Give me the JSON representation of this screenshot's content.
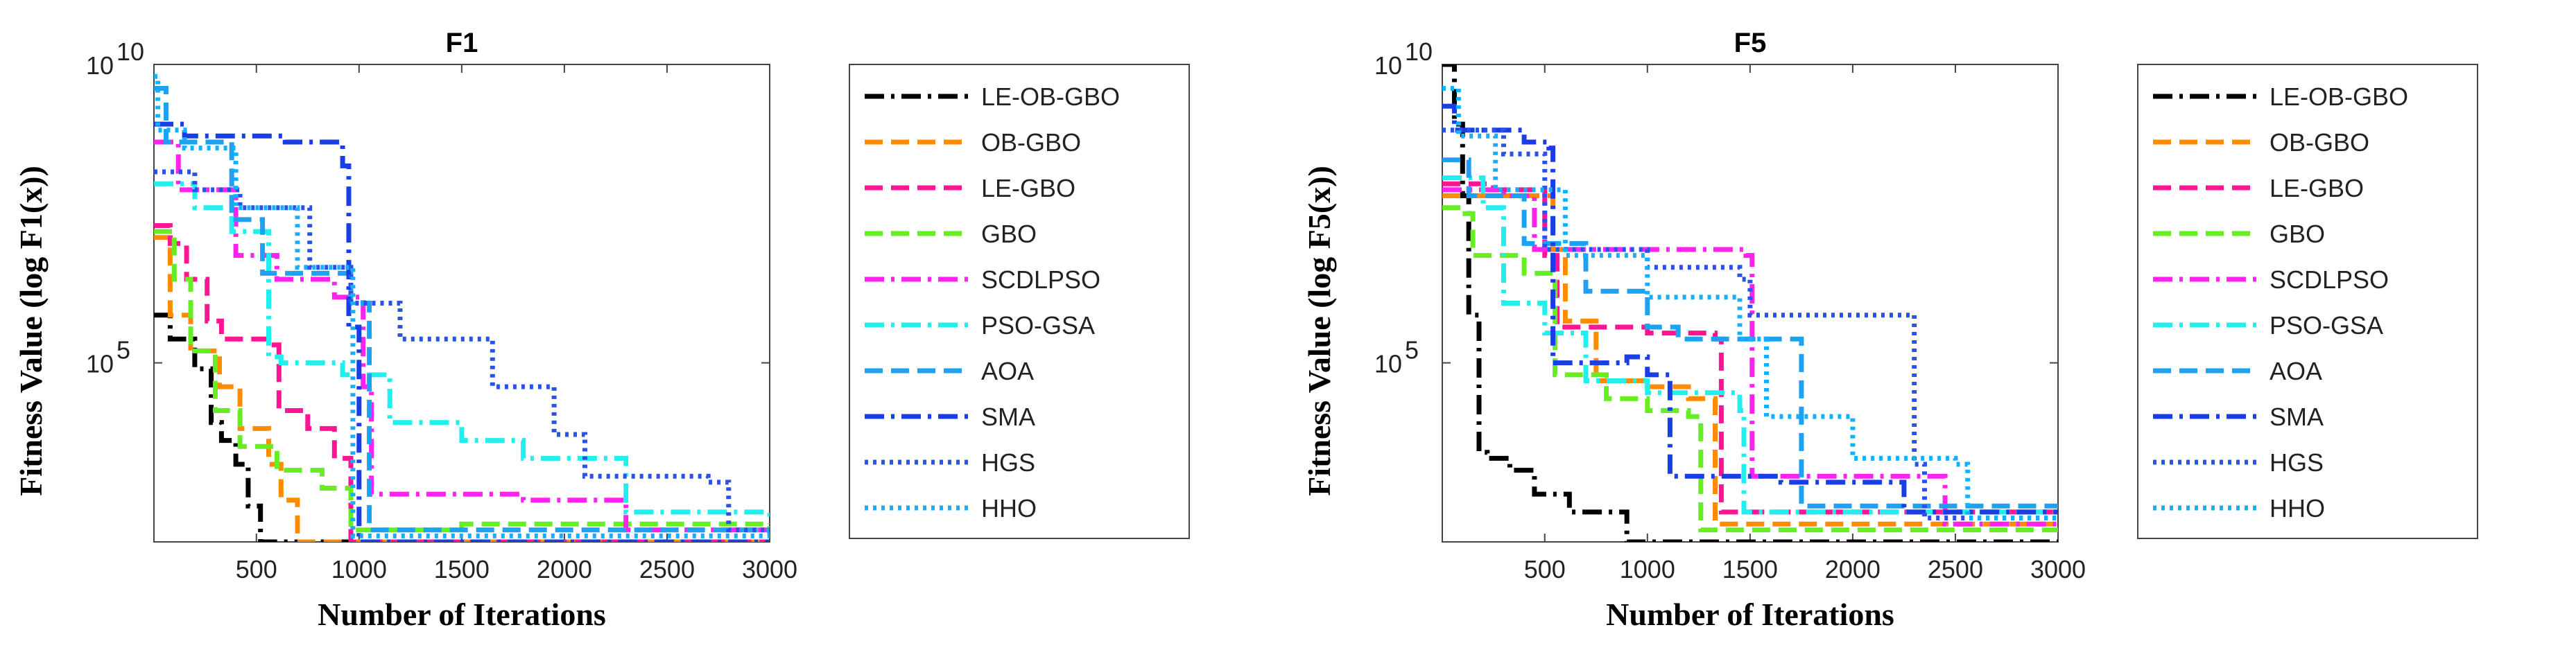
{
  "chart_data": [
    {
      "type": "line",
      "title": "F1",
      "xlabel": "Number of Iterations",
      "ylabel": "Fitness Value (log F1(x))",
      "xlim": [
        1,
        3000
      ],
      "ylim_log10": [
        2,
        10
      ],
      "y_scale": "log",
      "xticks": [
        "500",
        "1000",
        "1500",
        "2000",
        "2500",
        "3000"
      ],
      "yticks": [
        {
          "base": "10",
          "exp": "10",
          "value": 10
        },
        {
          "base": "10",
          "exp": "5",
          "value": 5
        }
      ],
      "grid": false,
      "legend": "outside-right",
      "series": [
        {
          "name": "LE-OB-GBO",
          "color": "#000000",
          "dash": "dashdot",
          "points": [
            [
              1,
              5.8
            ],
            [
              80,
              5.4
            ],
            [
              200,
              4.9
            ],
            [
              280,
              4.0
            ],
            [
              330,
              3.7
            ],
            [
              400,
              3.3
            ],
            [
              460,
              2.6
            ],
            [
              520,
              2.0
            ],
            [
              3000,
              2.0
            ]
          ]
        },
        {
          "name": "OB-GBO",
          "color": "#ff8c00",
          "dash": "dashed",
          "points": [
            [
              1,
              7.1
            ],
            [
              80,
              5.8
            ],
            [
              180,
              5.2
            ],
            [
              320,
              4.6
            ],
            [
              420,
              3.9
            ],
            [
              560,
              3.3
            ],
            [
              620,
              2.7
            ],
            [
              700,
              2.0
            ],
            [
              3000,
              2.0
            ]
          ]
        },
        {
          "name": "LE-GBO",
          "color": "#ff1493",
          "dash": "dashed",
          "points": [
            [
              1,
              7.3
            ],
            [
              80,
              7.0
            ],
            [
              160,
              6.4
            ],
            [
              260,
              5.7
            ],
            [
              330,
              5.4
            ],
            [
              560,
              5.3
            ],
            [
              610,
              4.2
            ],
            [
              750,
              3.9
            ],
            [
              880,
              3.4
            ],
            [
              960,
              2.0
            ],
            [
              3000,
              2.0
            ]
          ]
        },
        {
          "name": "GBO",
          "color": "#66ee22",
          "dash": "dashed",
          "points": [
            [
              1,
              7.2
            ],
            [
              100,
              6.4
            ],
            [
              180,
              5.2
            ],
            [
              300,
              4.2
            ],
            [
              420,
              3.6
            ],
            [
              600,
              3.2
            ],
            [
              820,
              2.9
            ],
            [
              960,
              2.2
            ],
            [
              1500,
              2.3
            ],
            [
              3000,
              2.2
            ]
          ]
        },
        {
          "name": "SCDLPSO",
          "color": "#ff22ee",
          "dash": "dashdot",
          "points": [
            [
              1,
              8.7
            ],
            [
              120,
              7.9
            ],
            [
              400,
              6.8
            ],
            [
              600,
              6.4
            ],
            [
              880,
              6.1
            ],
            [
              1020,
              4.6
            ],
            [
              1060,
              2.8
            ],
            [
              1800,
              2.7
            ],
            [
              2300,
              2.2
            ],
            [
              3000,
              2.2
            ]
          ]
        },
        {
          "name": "PSO-GSA",
          "color": "#22eeee",
          "dash": "dashdot",
          "points": [
            [
              1,
              8.0
            ],
            [
              200,
              7.6
            ],
            [
              380,
              7.2
            ],
            [
              560,
              5.1
            ],
            [
              620,
              5.0
            ],
            [
              920,
              4.8
            ],
            [
              1150,
              4.0
            ],
            [
              1500,
              3.7
            ],
            [
              1800,
              3.4
            ],
            [
              2300,
              2.5
            ],
            [
              3000,
              2.3
            ]
          ]
        },
        {
          "name": "AOA",
          "color": "#1ea1f0",
          "dash": "dashed",
          "points": [
            [
              1,
              9.6
            ],
            [
              60,
              8.7
            ],
            [
              380,
              7.4
            ],
            [
              530,
              6.5
            ],
            [
              960,
              6.0
            ],
            [
              1050,
              2.2
            ],
            [
              3000,
              2.1
            ]
          ]
        },
        {
          "name": "SMA",
          "color": "#1a3ee6",
          "dash": "dashdot",
          "points": [
            [
              1,
              9.0
            ],
            [
              150,
              8.8
            ],
            [
              640,
              8.7
            ],
            [
              920,
              8.3
            ],
            [
              950,
              5.6
            ],
            [
              1000,
              2.0
            ],
            [
              3000,
              2.0
            ]
          ]
        },
        {
          "name": "HGS",
          "color": "#2a52e8",
          "dash": "dotted",
          "points": [
            [
              1,
              8.2
            ],
            [
              200,
              7.9
            ],
            [
              420,
              7.6
            ],
            [
              760,
              6.6
            ],
            [
              960,
              6.0
            ],
            [
              1200,
              5.4
            ],
            [
              1650,
              4.6
            ],
            [
              1950,
              3.8
            ],
            [
              2100,
              3.1
            ],
            [
              2700,
              3.0
            ],
            [
              2800,
              2.2
            ],
            [
              3000,
              2.2
            ]
          ]
        },
        {
          "name": "HHO",
          "color": "#13b0ff",
          "dash": "dotted",
          "points": [
            [
              1,
              9.8
            ],
            [
              20,
              8.9
            ],
            [
              150,
              8.6
            ],
            [
              400,
              7.6
            ],
            [
              700,
              6.6
            ],
            [
              970,
              2.1
            ],
            [
              3000,
              2.1
            ]
          ]
        }
      ]
    },
    {
      "type": "line",
      "title": "F5",
      "xlabel": "Number of Iterations",
      "ylabel": "Fitness Value (log F5(x))",
      "xlim": [
        1,
        3000
      ],
      "ylim_log10": [
        2,
        10
      ],
      "y_scale": "log",
      "xticks": [
        "500",
        "1000",
        "1500",
        "2000",
        "2500",
        "3000"
      ],
      "yticks": [
        {
          "base": "10",
          "exp": "10",
          "value": 10
        },
        {
          "base": "10",
          "exp": "5",
          "value": 5
        }
      ],
      "grid": false,
      "legend": "outside-right",
      "series": [
        {
          "name": "LE-OB-GBO",
          "color": "#000000",
          "dash": "dashdot",
          "points": [
            [
              1,
              10.0
            ],
            [
              60,
              9.0
            ],
            [
              100,
              7.8
            ],
            [
              130,
              5.8
            ],
            [
              180,
              3.5
            ],
            [
              220,
              3.4
            ],
            [
              330,
              3.2
            ],
            [
              450,
              2.8
            ],
            [
              620,
              2.5
            ],
            [
              900,
              2.0
            ],
            [
              3000,
              2.0
            ]
          ]
        },
        {
          "name": "OB-GBO",
          "color": "#ff8c00",
          "dash": "dashed",
          "points": [
            [
              1,
              7.8
            ],
            [
              300,
              7.8
            ],
            [
              540,
              6.9
            ],
            [
              600,
              5.7
            ],
            [
              750,
              4.7
            ],
            [
              1000,
              4.6
            ],
            [
              1200,
              4.4
            ],
            [
              1330,
              2.3
            ],
            [
              3000,
              2.3
            ]
          ]
        },
        {
          "name": "LE-GBO",
          "color": "#ff1493",
          "dash": "dashed",
          "points": [
            [
              1,
              8.0
            ],
            [
              250,
              7.9
            ],
            [
              500,
              6.8
            ],
            [
              560,
              5.6
            ],
            [
              1000,
              5.5
            ],
            [
              1330,
              5.4
            ],
            [
              1360,
              2.5
            ],
            [
              3000,
              2.5
            ]
          ]
        },
        {
          "name": "GBO",
          "color": "#66ee22",
          "dash": "dashed",
          "points": [
            [
              1,
              7.6
            ],
            [
              90,
              7.5
            ],
            [
              150,
              6.8
            ],
            [
              400,
              6.5
            ],
            [
              550,
              4.8
            ],
            [
              800,
              4.4
            ],
            [
              1000,
              4.2
            ],
            [
              1200,
              4.1
            ],
            [
              1260,
              2.2
            ],
            [
              3000,
              2.2
            ]
          ]
        },
        {
          "name": "SCDLPSO",
          "color": "#ff22ee",
          "dash": "dashdot",
          "points": [
            [
              1,
              7.9
            ],
            [
              300,
              7.8
            ],
            [
              450,
              6.9
            ],
            [
              600,
              6.9
            ],
            [
              1480,
              6.8
            ],
            [
              1510,
              3.1
            ],
            [
              2200,
              3.1
            ],
            [
              2450,
              2.3
            ],
            [
              3000,
              2.3
            ]
          ]
        },
        {
          "name": "PSO-GSA",
          "color": "#22eeee",
          "dash": "dashdot",
          "points": [
            [
              1,
              8.1
            ],
            [
              200,
              7.6
            ],
            [
              300,
              6.0
            ],
            [
              500,
              5.5
            ],
            [
              700,
              4.7
            ],
            [
              1000,
              4.5
            ],
            [
              1450,
              4.2
            ],
            [
              1470,
              2.5
            ],
            [
              3000,
              2.5
            ]
          ]
        },
        {
          "name": "AOA",
          "color": "#1ea1f0",
          "dash": "dashed",
          "points": [
            [
              1,
              8.4
            ],
            [
              130,
              7.8
            ],
            [
              400,
              7.0
            ],
            [
              700,
              6.2
            ],
            [
              1000,
              5.6
            ],
            [
              1150,
              5.4
            ],
            [
              1500,
              5.4
            ],
            [
              1750,
              2.6
            ],
            [
              3000,
              2.6
            ]
          ]
        },
        {
          "name": "SMA",
          "color": "#1a3ee6",
          "dash": "dashdot",
          "points": [
            [
              1,
              9.3
            ],
            [
              60,
              8.9
            ],
            [
              400,
              8.7
            ],
            [
              520,
              8.6
            ],
            [
              540,
              5.0
            ],
            [
              900,
              5.1
            ],
            [
              1000,
              4.8
            ],
            [
              1110,
              3.1
            ],
            [
              1650,
              3.0
            ],
            [
              2250,
              2.5
            ],
            [
              3000,
              2.5
            ]
          ]
        },
        {
          "name": "HGS",
          "color": "#2a52e8",
          "dash": "dotted",
          "points": [
            [
              1,
              8.9
            ],
            [
              300,
              8.5
            ],
            [
              500,
              6.9
            ],
            [
              1000,
              6.6
            ],
            [
              1450,
              6.4
            ],
            [
              1500,
              5.8
            ],
            [
              2200,
              5.8
            ],
            [
              2300,
              3.3
            ],
            [
              2350,
              2.4
            ],
            [
              3000,
              2.4
            ]
          ]
        },
        {
          "name": "HHO",
          "color": "#13b0ff",
          "dash": "dotted",
          "points": [
            [
              1,
              9.6
            ],
            [
              80,
              8.8
            ],
            [
              260,
              7.9
            ],
            [
              600,
              6.8
            ],
            [
              1000,
              6.1
            ],
            [
              1450,
              5.4
            ],
            [
              1580,
              4.1
            ],
            [
              2000,
              3.4
            ],
            [
              2500,
              3.3
            ],
            [
              2560,
              2.4
            ],
            [
              3000,
              2.4
            ]
          ]
        }
      ]
    }
  ]
}
